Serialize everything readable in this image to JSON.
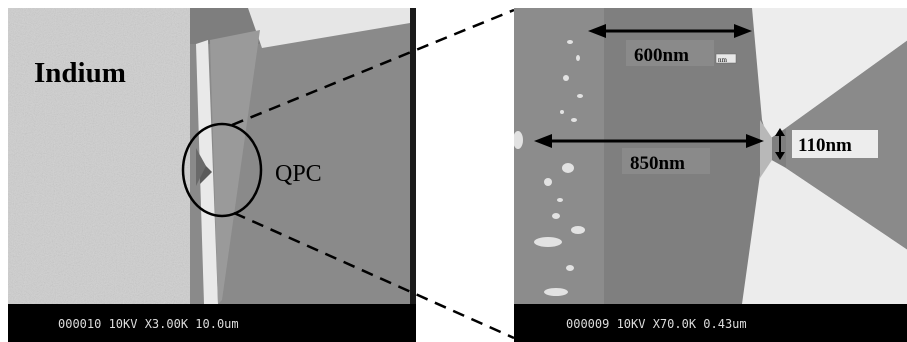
{
  "left_panel": {
    "material_label": "Indium",
    "device_label": "QPC",
    "info_bar": "000010  10KV  X3.00K  10.0um"
  },
  "right_panel": {
    "dimension_top": "600nm",
    "dimension_top_tag": "nm",
    "dimension_middle": "850nm",
    "dimension_gap": "110nm",
    "info_bar": "000009  10KV  X70.0K  0.43um"
  },
  "colors": {
    "info_bar": "#000000",
    "info_text": "#dcdcdc",
    "callout": "#000000"
  }
}
